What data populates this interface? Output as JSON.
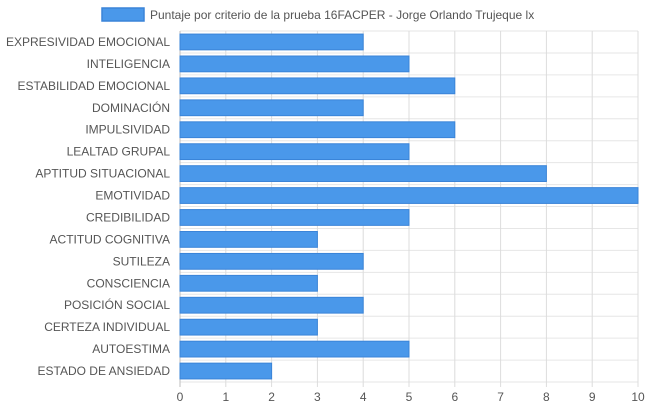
{
  "chart_data": {
    "type": "bar",
    "orientation": "horizontal",
    "categories": [
      "EXPRESIVIDAD EMOCIONAL",
      "INTELIGENCIA",
      "ESTABILIDAD EMOCIONAL",
      "DOMINACIÓN",
      "IMPULSIVIDAD",
      "LEALTAD GRUPAL",
      "APTITUD SITUACIONAL",
      "EMOTIVIDAD",
      "CREDIBILIDAD",
      "ACTITUD COGNITIVA",
      "SUTILEZA",
      "CONSCIENCIA",
      "POSICIÓN SOCIAL",
      "CERTEZA INDIVIDUAL",
      "AUTOESTIMA",
      "ESTADO DE ANSIEDAD"
    ],
    "series": [
      {
        "name": "Puntaje por criterio de la prueba 16FACPER - Jorge Orlando Trujeque lx",
        "values": [
          4,
          5,
          6,
          4,
          6,
          5,
          8,
          10,
          5,
          3,
          4,
          3,
          4,
          3,
          5,
          2
        ],
        "color": "#4a98ea",
        "border_color": "#3a84d8"
      }
    ],
    "xlim": [
      0,
      10
    ],
    "xticks": [
      "0",
      "1",
      "2",
      "3",
      "4",
      "5",
      "6",
      "7",
      "8",
      "9",
      "10"
    ],
    "grid": true,
    "legend_position": "top-center"
  }
}
